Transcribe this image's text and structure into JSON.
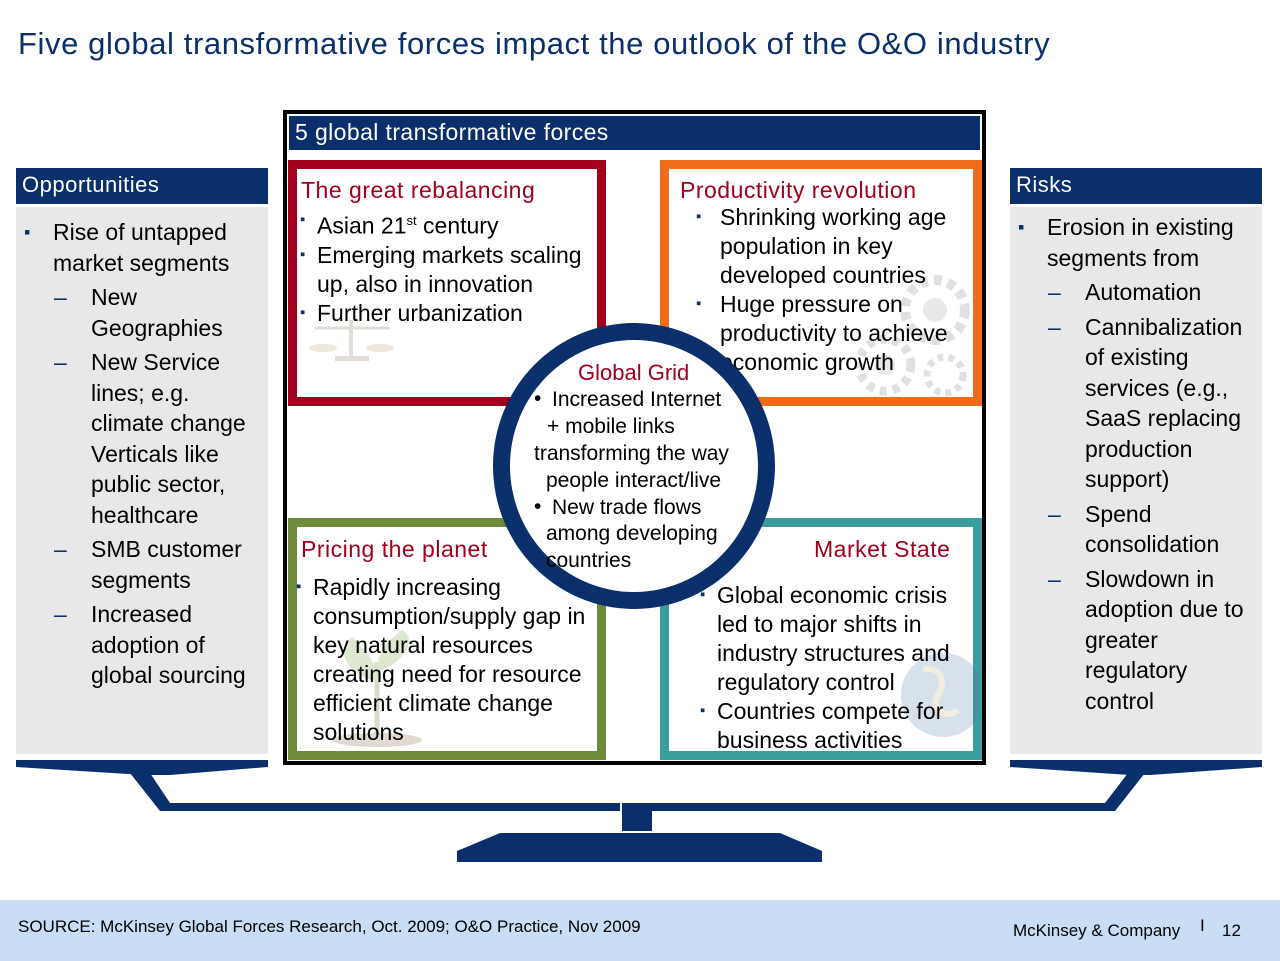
{
  "title": "Five global transformative forces impact the outlook of the O&O industry",
  "opportunities": {
    "header": "Opportunities",
    "items": [
      {
        "level": 1,
        "text": "Rise of untapped market segments"
      },
      {
        "level": 2,
        "text": "New Geographies"
      },
      {
        "level": 2,
        "text": "New Service lines; e.g. climate change Verticals like public sector, healthcare"
      },
      {
        "level": 2,
        "text": "SMB customer segments"
      },
      {
        "level": 2,
        "text": "Increased adoption of global sourcing"
      }
    ]
  },
  "risks": {
    "header": "Risks",
    "items": [
      {
        "level": 1,
        "text": "Erosion in existing segments from"
      },
      {
        "level": 2,
        "text": "Automation"
      },
      {
        "level": 2,
        "text": "Cannibalization of existing services (e.g., SaaS replacing production support)"
      },
      {
        "level": 2,
        "text": "Spend consolidation"
      },
      {
        "level": 2,
        "text": "Slowdown in adoption due to greater regulatory control"
      }
    ]
  },
  "forces": {
    "header": "5 global transformative forces",
    "rebalancing": {
      "title": "The great rebalancing",
      "item1_pre": "Asian 21",
      "item1_sup": "st",
      "item1_post": " century",
      "item2": "Emerging markets scaling up, also in innovation",
      "item3": "Further urbanization"
    },
    "productivity": {
      "title": "Productivity revolution",
      "item1": "Shrinking working age population in key developed countries",
      "item2": "Huge pressure on productivity to achieve economic growth"
    },
    "planet": {
      "title": "Pricing the planet",
      "item1": "Rapidly increasing consumption/supply gap in key natural resources creating need for resource efficient climate change solutions"
    },
    "market": {
      "title": "Market State",
      "item1": "Global economic crisis led to major shifts in industry structures and regulatory control",
      "item2": "Countries compete for business activities"
    },
    "grid": {
      "title": "Global Grid",
      "lines": [
        "Increased Internet",
        "+ mobile links",
        "transforming the way",
        "people interact/live",
        "New trade flows",
        "among developing",
        "countries"
      ]
    }
  },
  "colors": {
    "navy": "#0b2f6b",
    "rebalancing": "#a1001c",
    "productivity": "#ef6c1a",
    "planet": "#6f8a3a",
    "market": "#3a9f9c",
    "footer": "#c9ddf5"
  },
  "footer": {
    "source": "SOURCE:  McKinsey Global Forces Research, Oct. 2009; O&O Practice, Nov 2009",
    "company": "McKinsey & Company",
    "separator": "I",
    "page": "12"
  }
}
